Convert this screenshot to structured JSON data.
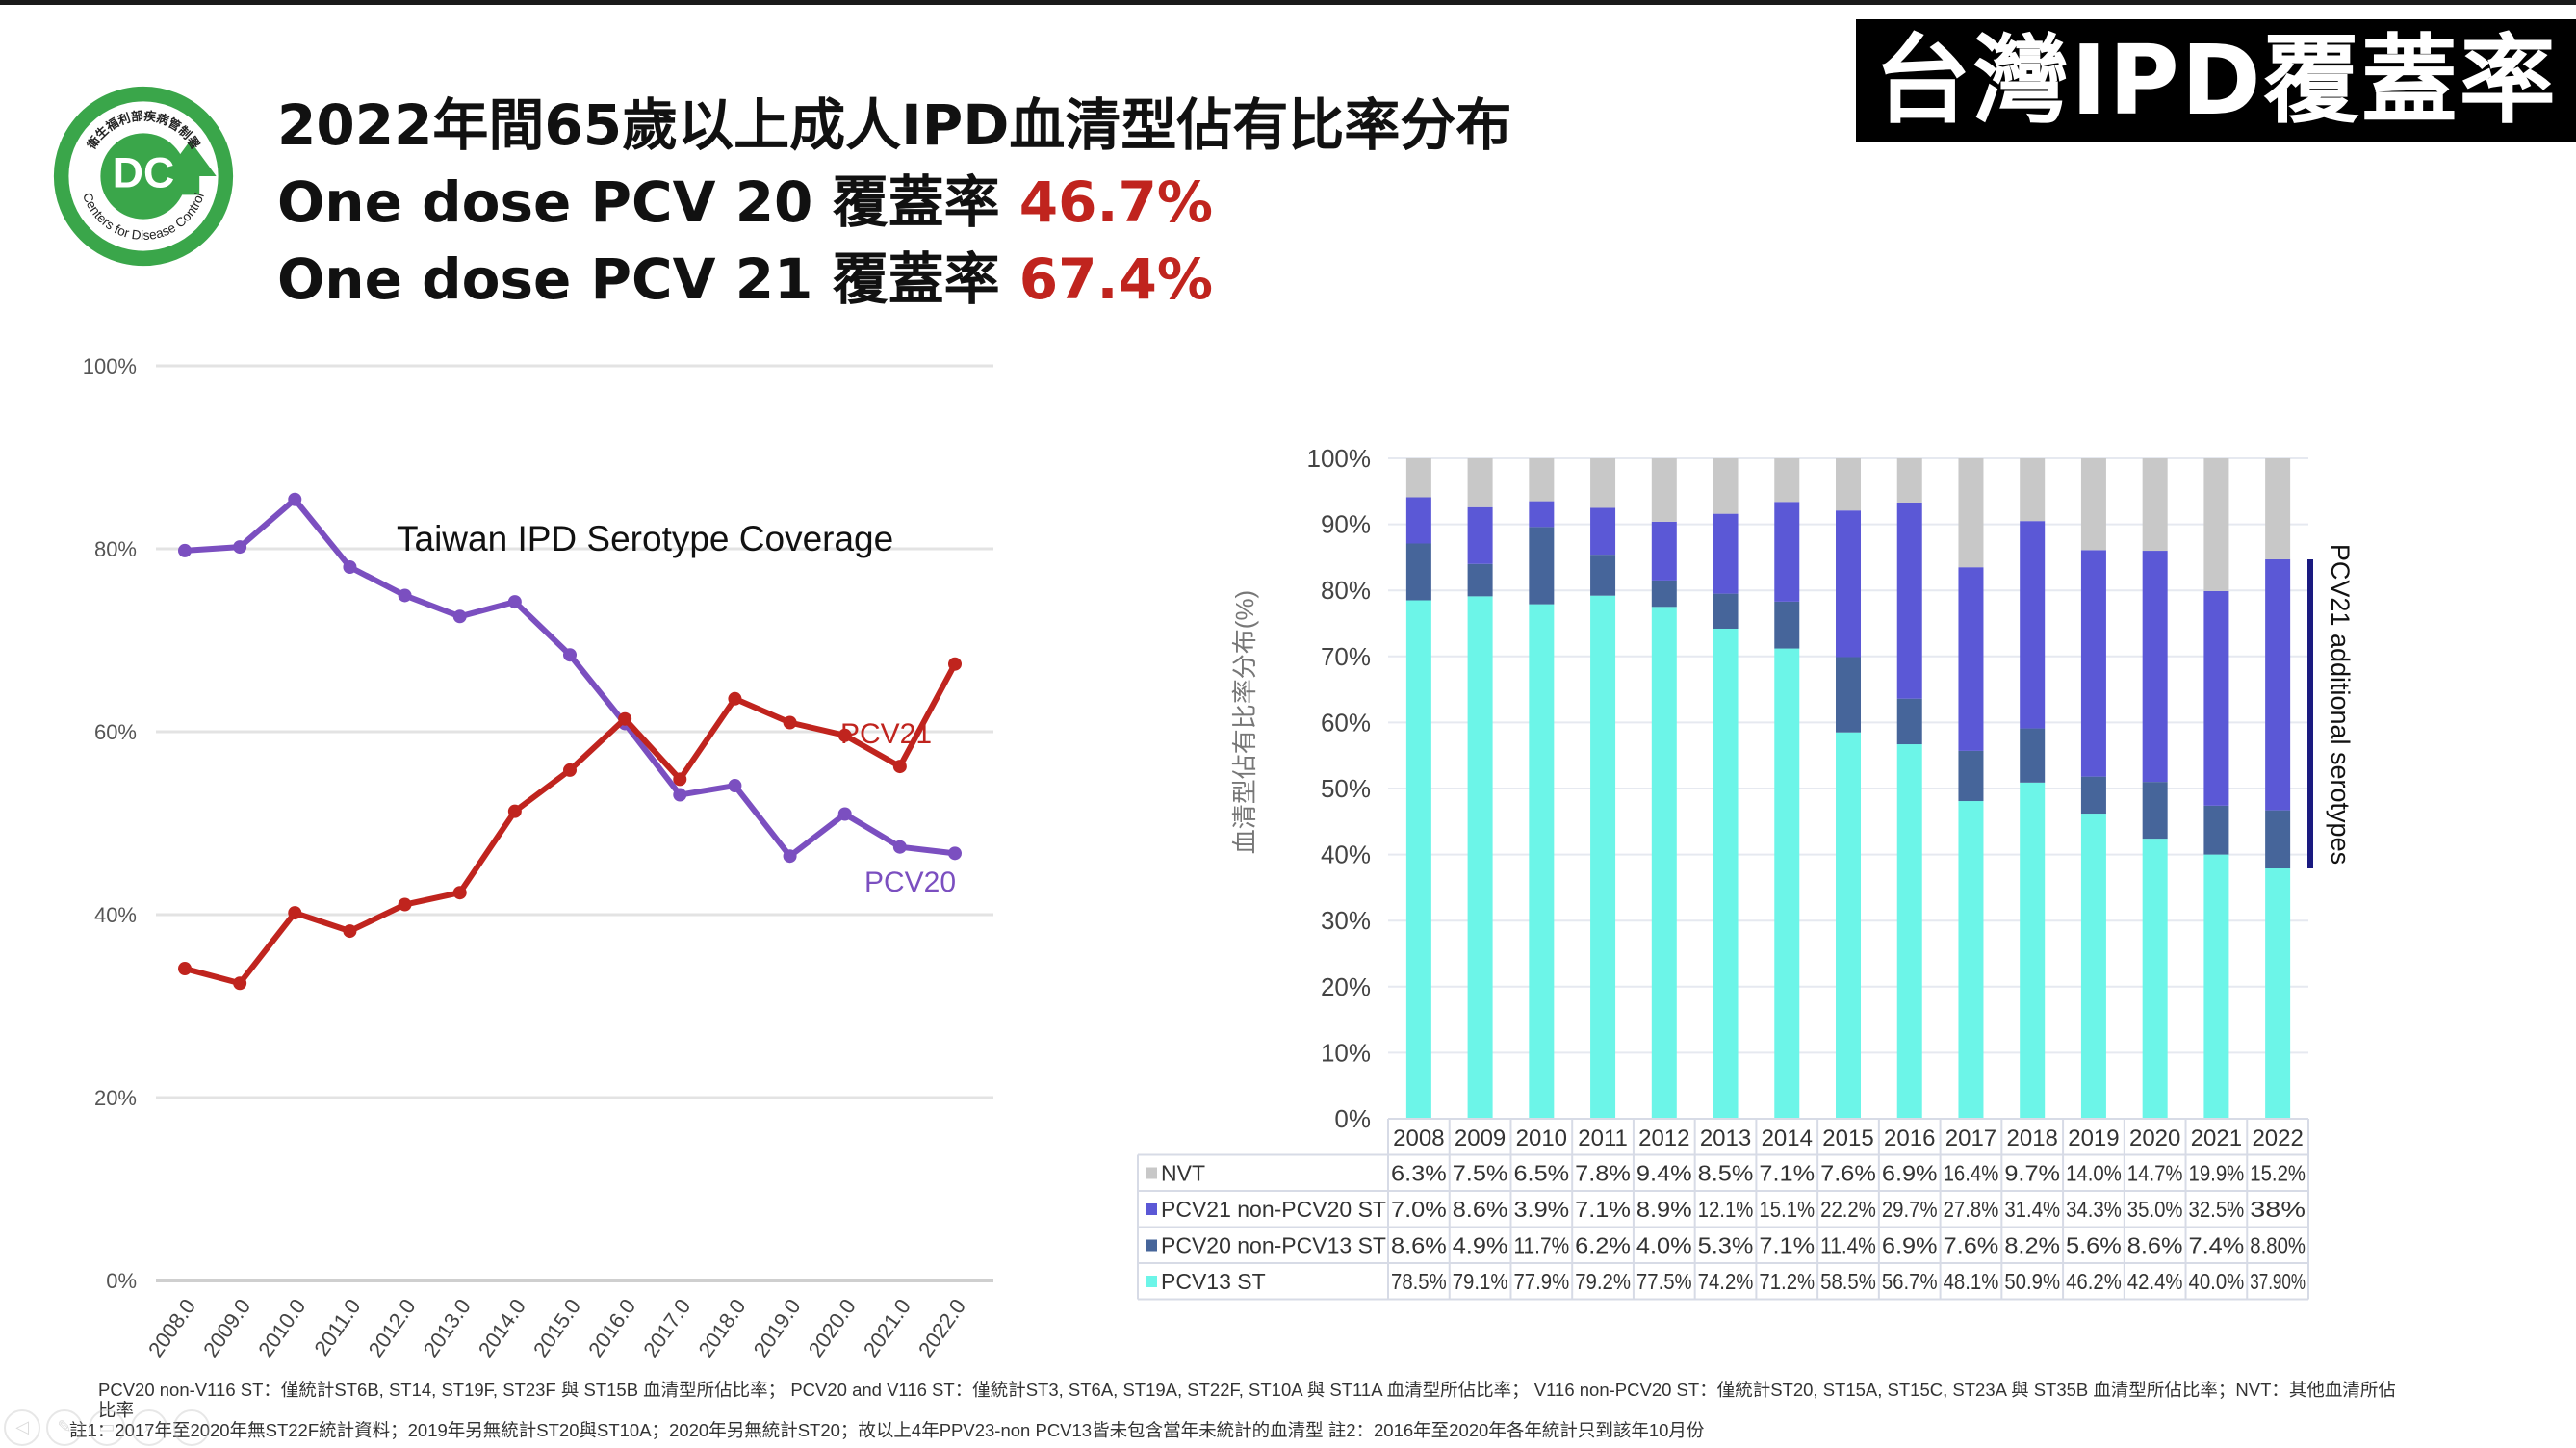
{
  "header": {
    "title": "2022年間65歲以上成人IPD血清型佔有比率分布",
    "line2_prefix": "One dose PCV 20 覆蓋率 ",
    "line2_value": "46.7%",
    "line3_prefix": "One dose PCV 21 覆蓋率 ",
    "line3_value": "67.4%",
    "badge": "台灣IPD覆蓋率"
  },
  "logo": {
    "org_zh": "衛生福利部疾病管制署",
    "org_en": "Centers for Disease Control",
    "mark": "DC",
    "color": "#3aa64a"
  },
  "colors": {
    "pcv20_line": "#7b4fc0",
    "pcv21_line": "#c0241e",
    "nvt": "#c8c8c8",
    "pcv21_non_pcv20": "#5b58d6",
    "pcv20_non_pcv13": "#46659a",
    "pcv13": "#6cf5e8",
    "bracket": "#1a1a80"
  },
  "chart_data": [
    {
      "type": "line",
      "title": "Taiwan IPD Serotype Coverage",
      "xlabel": "",
      "ylabel": "",
      "x": [
        "2008.0",
        "2009.0",
        "2010.0",
        "2011.0",
        "2012.0",
        "2013.0",
        "2014.0",
        "2015.0",
        "2016.0",
        "2017.0",
        "2018.0",
        "2019.0",
        "2020.0",
        "2021.0",
        "2022.0"
      ],
      "yticks": [
        "0%",
        "20%",
        "40%",
        "60%",
        "80%",
        "100%"
      ],
      "ylim": [
        0,
        100
      ],
      "grid": true,
      "series": [
        {
          "name": "PCV20",
          "values": [
            79.8,
            80.2,
            85.4,
            78.0,
            74.9,
            72.6,
            74.2,
            68.4,
            60.9,
            53.1,
            54.1,
            46.4,
            51.0,
            47.4,
            46.7
          ]
        },
        {
          "name": "PCV21",
          "values": [
            34.1,
            32.5,
            40.2,
            38.2,
            41.1,
            42.4,
            51.3,
            55.8,
            61.4,
            54.8,
            63.6,
            61.0,
            59.6,
            56.2,
            67.4
          ]
        }
      ]
    },
    {
      "type": "bar",
      "stacked": true,
      "title": "",
      "ylabel": "血清型佔有比率分布(%)",
      "categories": [
        "2008",
        "2009",
        "2010",
        "2011",
        "2012",
        "2013",
        "2014",
        "2015",
        "2016",
        "2017",
        "2018",
        "2019",
        "2020",
        "2021",
        "2022"
      ],
      "yticks": [
        "0%",
        "10%",
        "20%",
        "30%",
        "40%",
        "50%",
        "60%",
        "70%",
        "80%",
        "90%",
        "100%"
      ],
      "ylim": [
        0,
        100
      ],
      "grid": true,
      "series": [
        {
          "name": "PCV13 ST",
          "values": [
            78.5,
            79.1,
            77.9,
            79.2,
            77.5,
            74.2,
            71.2,
            58.5,
            56.7,
            48.1,
            50.9,
            46.2,
            42.4,
            40.0,
            37.9
          ],
          "labels": [
            "78.5%",
            "79.1%",
            "77.9%",
            "79.2%",
            "77.5%",
            "74.2%",
            "71.2%",
            "58.5%",
            "56.7%",
            "48.1%",
            "50.9%",
            "46.2%",
            "42.4%",
            "40.0%",
            "37.90%"
          ]
        },
        {
          "name": "PCV20 non-PCV13 ST",
          "values": [
            8.6,
            4.9,
            11.7,
            6.2,
            4.0,
            5.3,
            7.1,
            11.4,
            6.9,
            7.6,
            8.2,
            5.6,
            8.6,
            7.4,
            8.8
          ],
          "labels": [
            "8.6%",
            "4.9%",
            "11.7%",
            "6.2%",
            "4.0%",
            "5.3%",
            "7.1%",
            "11.4%",
            "6.9%",
            "7.6%",
            "8.2%",
            "5.6%",
            "8.6%",
            "7.4%",
            "8.80%"
          ]
        },
        {
          "name": "PCV21 non-PCV20 ST",
          "values": [
            7.0,
            8.6,
            3.9,
            7.1,
            8.9,
            12.1,
            15.1,
            22.2,
            29.7,
            27.8,
            31.4,
            34.3,
            35.0,
            32.5,
            38.0
          ],
          "labels": [
            "7.0%",
            "8.6%",
            "3.9%",
            "7.1%",
            "8.9%",
            "12.1%",
            "15.1%",
            "22.2%",
            "29.7%",
            "27.8%",
            "31.4%",
            "34.3%",
            "35.0%",
            "32.5%",
            "38%"
          ]
        },
        {
          "name": "NVT",
          "values": [
            6.3,
            7.5,
            6.5,
            7.8,
            9.4,
            8.5,
            7.1,
            7.6,
            6.9,
            16.4,
            9.7,
            14.0,
            14.7,
            19.9,
            15.2
          ],
          "labels": [
            "6.3%",
            "7.5%",
            "6.5%",
            "7.8%",
            "9.4%",
            "8.5%",
            "7.1%",
            "7.6%",
            "6.9%",
            "16.4%",
            "9.7%",
            "14.0%",
            "14.7%",
            "19.9%",
            "15.2%"
          ]
        }
      ],
      "table_row_order": [
        "NVT",
        "PCV21 non-PCV20 ST",
        "PCV20 non-PCV13 ST",
        "PCV13 ST"
      ],
      "annotation": "PCV21 additional serotypes"
    }
  ],
  "footnotes": {
    "line1": "PCV20 non-V116 ST：僅統計ST6B, ST14, ST19F, ST23F 與 ST15B 血清型所佔比率； PCV20 and V116 ST：僅統計ST3, ST6A, ST19A, ST22F, ST10A 與 ST11A 血清型所佔比率； V116 non-PCV20 ST：僅統計ST20, ST15A, ST15C, ST23A 與 ST35B 血清型所佔比率；NVT：其他血清所佔",
    "line1b": "比率",
    "line2": "註1：2017年至2020年無ST22F統計資料；2019年另無統計ST20與ST10A；2020年另無統計ST20；故以上4年PPV23-non PCV13皆未包含當年未統計的血清型 註2：2016年至2020年各年統計只到該年10月份"
  },
  "player_controls": [
    "prev-icon",
    "pen-icon",
    "highlighter-icon",
    "zoom-icon",
    "menu-icon"
  ]
}
